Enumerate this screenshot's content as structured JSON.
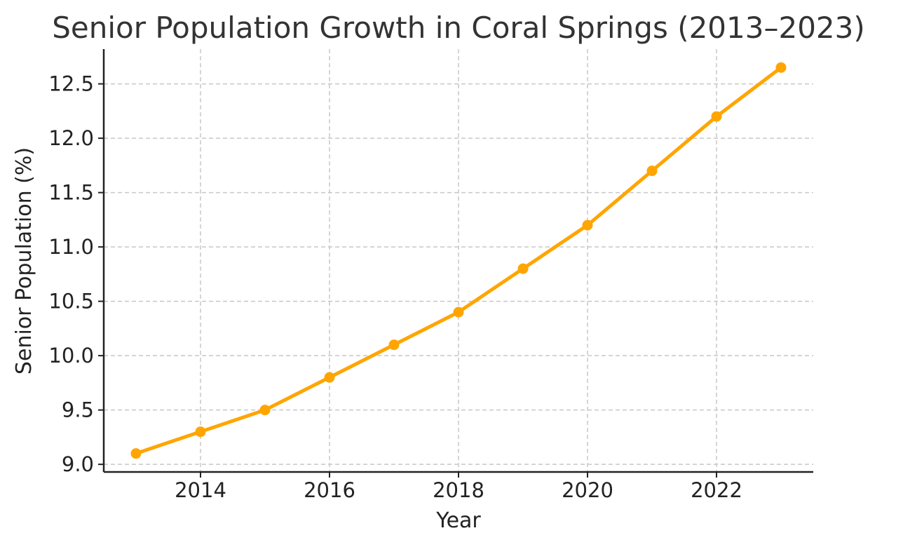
{
  "chart_data": {
    "type": "line",
    "title": "Senior Population Growth in Coral Springs (2013–2023)",
    "xlabel": "Year",
    "ylabel": "Senior Population (%)",
    "x": [
      2013,
      2014,
      2015,
      2016,
      2017,
      2018,
      2019,
      2020,
      2021,
      2022,
      2023
    ],
    "series": [
      {
        "values": [
          9.1,
          9.3,
          9.5,
          9.8,
          10.1,
          10.4,
          10.8,
          11.2,
          11.7,
          12.2,
          12.65
        ],
        "color": "#FFA500",
        "marker": "circle"
      }
    ],
    "xlim": [
      2012.5,
      2023.5
    ],
    "ylim": [
      8.93,
      12.82
    ],
    "xticks": [
      2014,
      2016,
      2018,
      2020,
      2022
    ],
    "xtick_labels": [
      "2014",
      "2016",
      "2018",
      "2020",
      "2022"
    ],
    "yticks": [
      9.0,
      9.5,
      10.0,
      10.5,
      11.0,
      11.5,
      12.0,
      12.5
    ],
    "ytick_labels": [
      "9.0",
      "9.5",
      "10.0",
      "10.5",
      "11.0",
      "11.5",
      "12.0",
      "12.5"
    ],
    "grid": true,
    "legend": "none"
  }
}
